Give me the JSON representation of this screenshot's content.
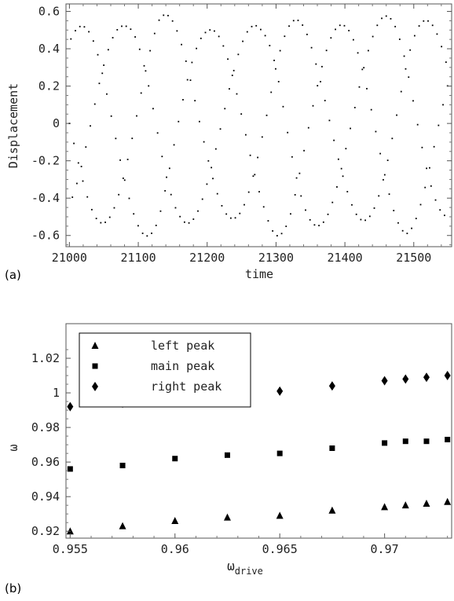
{
  "panel_a_label": "(a)",
  "panel_b_label": "(b)",
  "chart_data": [
    {
      "type": "scatter",
      "panel": "(a)",
      "xlabel": "time",
      "ylabel": "Displacement",
      "xlim": [
        20995,
        21555
      ],
      "ylim": [
        -0.66,
        0.64
      ],
      "xticks": [
        21000,
        21100,
        21200,
        21300,
        21400,
        21500
      ],
      "xtick_labels": [
        "21000",
        "21100",
        "21200",
        "21300",
        "21400",
        "21500"
      ],
      "yticks": [
        -0.6,
        -0.4,
        -0.2,
        0,
        0.2,
        0.4,
        0.6
      ],
      "ytick_labels": [
        "-0.6",
        "-0.4",
        "-0.2",
        "0",
        "0.2",
        "0.4",
        "0.6"
      ],
      "grid": false,
      "marker_color": "#000000",
      "envelope": {
        "x": [
          21000,
          21040,
          21080,
          21110,
          21130,
          21160,
          21200,
          21240,
          21280,
          21300,
          21320,
          21360,
          21400,
          21440,
          21470,
          21490,
          21520,
          21550
        ],
        "upper": [
          0.5,
          0.55,
          0.52,
          0.57,
          0.6,
          0.55,
          0.5,
          0.51,
          0.53,
          0.6,
          0.57,
          0.51,
          0.53,
          0.55,
          0.59,
          0.61,
          0.55,
          0.5
        ],
        "lower": [
          -0.5,
          -0.53,
          -0.55,
          -0.6,
          -0.63,
          -0.55,
          -0.5,
          -0.51,
          -0.53,
          -0.6,
          -0.63,
          -0.55,
          -0.5,
          -0.53,
          -0.57,
          -0.59,
          -0.55,
          -0.5
        ]
      },
      "sample_period": 2.17,
      "osc_period": 3.2
    },
    {
      "type": "scatter",
      "panel": "(b)",
      "xlabel": "ω",
      "xlabel_sub": "drive",
      "ylabel": "ω",
      "xlim": [
        0.9548,
        0.9732
      ],
      "ylim": [
        0.916,
        1.04
      ],
      "xticks": [
        0.955,
        0.96,
        0.965,
        0.97
      ],
      "xtick_labels": [
        "0.955",
        "0.96",
        "0.965",
        "0.97"
      ],
      "yticks": [
        0.92,
        0.94,
        0.96,
        0.98,
        1.0,
        1.02
      ],
      "ytick_labels": [
        "0.92",
        "0.94",
        "0.96",
        "0.98",
        "1",
        "1.02"
      ],
      "grid": false,
      "legend_position": "top-left",
      "x": [
        0.955,
        0.9575,
        0.96,
        0.9625,
        0.965,
        0.9675,
        0.97,
        0.971,
        0.972,
        0.973
      ],
      "series": [
        {
          "name": "left peak",
          "marker": "triangle",
          "values": [
            0.92,
            0.923,
            0.926,
            0.928,
            0.929,
            0.932,
            0.934,
            0.935,
            0.936,
            0.937
          ]
        },
        {
          "name": "main peak",
          "marker": "square",
          "values": [
            0.956,
            0.958,
            0.962,
            0.964,
            0.965,
            0.968,
            0.971,
            0.972,
            0.972,
            0.973
          ]
        },
        {
          "name": "right peak",
          "marker": "diamond",
          "values": [
            0.992,
            0.994,
            0.997,
            0.999,
            1.001,
            1.004,
            1.007,
            1.008,
            1.009,
            1.01
          ]
        }
      ]
    }
  ]
}
